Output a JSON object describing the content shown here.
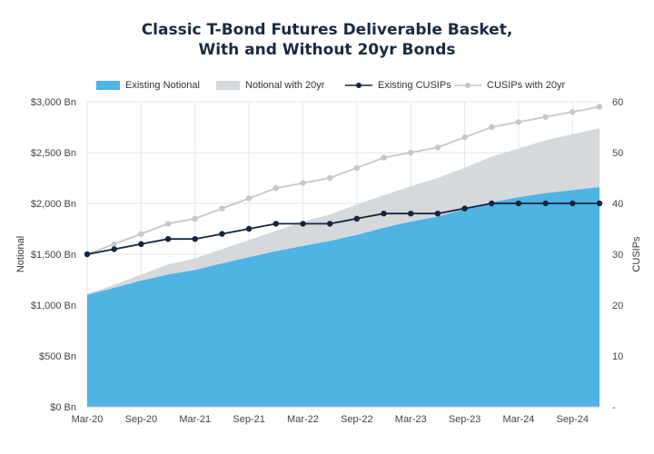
{
  "chart_data": {
    "type": "area",
    "title_line1": "Classic T-Bond Futures Deliverable Basket,",
    "title_line2": "With and Without 20yr Bonds",
    "x": [
      "Mar-20",
      "Jun-20",
      "Sep-20",
      "Dec-20",
      "Mar-21",
      "Jun-21",
      "Sep-21",
      "Dec-21",
      "Mar-22",
      "Jun-22",
      "Sep-22",
      "Dec-22",
      "Mar-23",
      "Jun-23",
      "Sep-23",
      "Dec-23",
      "Mar-24",
      "Jun-24",
      "Sep-24",
      "Dec-24"
    ],
    "xticks": [
      "Mar-20",
      "Sep-20",
      "Mar-21",
      "Sep-21",
      "Mar-22",
      "Sep-22",
      "Mar-23",
      "Sep-23",
      "Mar-24",
      "Sep-24"
    ],
    "ylabel_left": "Notional",
    "ylabel_right": "CUSIPs",
    "yticks_left": [
      "$0 Bn",
      "$500 Bn",
      "$1,000 Bn",
      "$1,500 Bn",
      "$2,000 Bn",
      "$2,500 Bn",
      "$3,000 Bn"
    ],
    "yticks_right": [
      "-",
      "10",
      "20",
      "30",
      "40",
      "50",
      "60"
    ],
    "ylim_left": [
      0,
      3000
    ],
    "ylim_right": [
      0,
      60
    ],
    "grid": true,
    "legend_position": "top",
    "series": [
      {
        "name": "Existing Notional",
        "kind": "area",
        "axis": "left",
        "color": "#4fb4e3",
        "values": [
          1100,
          1170,
          1240,
          1300,
          1345,
          1410,
          1470,
          1530,
          1580,
          1630,
          1690,
          1760,
          1820,
          1870,
          1940,
          2010,
          2060,
          2100,
          2130,
          2160
        ]
      },
      {
        "name": "Notional with 20yr",
        "kind": "area",
        "axis": "left",
        "color": "#d5d9dc",
        "values": [
          1110,
          1200,
          1300,
          1400,
          1460,
          1550,
          1640,
          1730,
          1820,
          1890,
          1990,
          2080,
          2170,
          2250,
          2350,
          2460,
          2540,
          2620,
          2680,
          2740
        ]
      },
      {
        "name": "Existing CUSIPs",
        "kind": "line",
        "axis": "right",
        "color": "#14253f",
        "values": [
          30,
          31,
          32,
          33,
          33,
          34,
          35,
          36,
          36,
          36,
          37,
          38,
          38,
          38,
          39,
          40,
          40,
          40,
          40,
          40
        ]
      },
      {
        "name": "CUSIPs with 20yr",
        "kind": "line",
        "axis": "right",
        "color": "#c4c8cb",
        "values": [
          30,
          32,
          34,
          36,
          37,
          39,
          41,
          43,
          44,
          45,
          47,
          49,
          50,
          51,
          53,
          55,
          56,
          57,
          58,
          59
        ]
      }
    ]
  }
}
